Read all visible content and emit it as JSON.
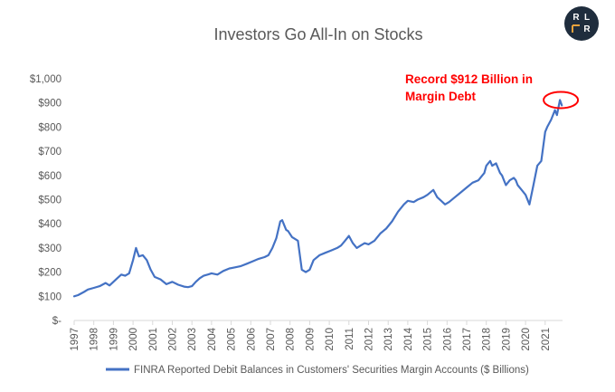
{
  "logo": {
    "letters": [
      "R",
      "L",
      "R"
    ],
    "bg_color": "#1f2d3d",
    "accent_color": "#e6a23c"
  },
  "chart_data": {
    "type": "line",
    "title": "Investors Go All-In on Stocks",
    "xlabel": "",
    "ylabel": "",
    "x_ticks": [
      "1997",
      "1998",
      "1999",
      "2000",
      "2001",
      "2002",
      "2003",
      "2004",
      "2005",
      "2006",
      "2007",
      "2008",
      "2009",
      "2010",
      "2011",
      "2012",
      "2013",
      "2014",
      "2015",
      "2016",
      "2017",
      "2018",
      "2019",
      "2020",
      "2021"
    ],
    "y_ticks": [
      0,
      100,
      200,
      300,
      400,
      500,
      600,
      700,
      800,
      900,
      1000
    ],
    "y_tick_labels": [
      "$-",
      "$100",
      "$200",
      "$300",
      "$400",
      "$500",
      "$600",
      "$700",
      "$800",
      "$900",
      "$1,000"
    ],
    "xlim": [
      1997.0,
      2021.9
    ],
    "ylim": [
      0,
      1000
    ],
    "grid": false,
    "legend_position": "bottom",
    "series_color": "#4472c4",
    "series": [
      {
        "name": "FINRA Reported Debit Balances in Customers' Securities Margin Accounts ($ Billions)",
        "x": [
          1997.0,
          1997.2,
          1997.5,
          1997.7,
          1998.0,
          1998.3,
          1998.6,
          1998.8,
          1999.0,
          1999.2,
          1999.4,
          1999.6,
          1999.8,
          2000.0,
          2000.15,
          2000.3,
          2000.5,
          2000.7,
          2000.9,
          2001.1,
          2001.4,
          2001.7,
          2002.0,
          2002.3,
          2002.6,
          2002.8,
          2003.0,
          2003.2,
          2003.4,
          2003.6,
          2003.8,
          2004.0,
          2004.3,
          2004.6,
          2004.9,
          2005.2,
          2005.5,
          2005.8,
          2006.1,
          2006.4,
          2006.7,
          2006.9,
          2007.1,
          2007.3,
          2007.5,
          2007.6,
          2007.8,
          2007.9,
          2008.1,
          2008.2,
          2008.4,
          2008.6,
          2008.8,
          2009.0,
          2009.2,
          2009.5,
          2009.8,
          2010.1,
          2010.4,
          2010.6,
          2010.8,
          2011.0,
          2011.2,
          2011.4,
          2011.6,
          2011.8,
          2012.0,
          2012.3,
          2012.6,
          2012.9,
          2013.2,
          2013.5,
          2013.8,
          2014.0,
          2014.3,
          2014.5,
          2014.8,
          2015.0,
          2015.3,
          2015.5,
          2015.7,
          2015.9,
          2016.1,
          2016.4,
          2016.7,
          2017.0,
          2017.3,
          2017.6,
          2017.9,
          2018.0,
          2018.2,
          2018.3,
          2018.5,
          2018.7,
          2018.8,
          2018.9,
          2019.0,
          2019.2,
          2019.4,
          2019.5,
          2019.6,
          2019.8,
          2020.0,
          2020.2,
          2020.4,
          2020.6,
          2020.8,
          2021.0,
          2021.1,
          2021.3,
          2021.5,
          2021.6,
          2021.75,
          2021.85
        ],
        "values": [
          100,
          105,
          118,
          128,
          135,
          142,
          155,
          145,
          160,
          175,
          190,
          185,
          195,
          250,
          300,
          265,
          270,
          250,
          210,
          180,
          170,
          150,
          160,
          148,
          140,
          138,
          142,
          160,
          175,
          185,
          190,
          195,
          190,
          205,
          215,
          220,
          225,
          235,
          245,
          255,
          262,
          270,
          300,
          340,
          410,
          415,
          375,
          370,
          345,
          340,
          330,
          210,
          200,
          210,
          250,
          270,
          280,
          290,
          300,
          310,
          330,
          350,
          320,
          300,
          310,
          320,
          315,
          330,
          360,
          380,
          410,
          450,
          480,
          495,
          490,
          500,
          510,
          520,
          540,
          510,
          495,
          480,
          490,
          510,
          530,
          550,
          570,
          580,
          610,
          640,
          660,
          640,
          650,
          610,
          600,
          580,
          560,
          580,
          590,
          580,
          560,
          540,
          520,
          480,
          560,
          640,
          660,
          780,
          800,
          830,
          870,
          850,
          912,
          890
        ]
      }
    ],
    "annotation": {
      "text_line1": "Record $912 Billion in",
      "text_line2": "Margin Debt",
      "color": "#ff0000",
      "target_x": 2021.75,
      "target_y": 912
    }
  }
}
